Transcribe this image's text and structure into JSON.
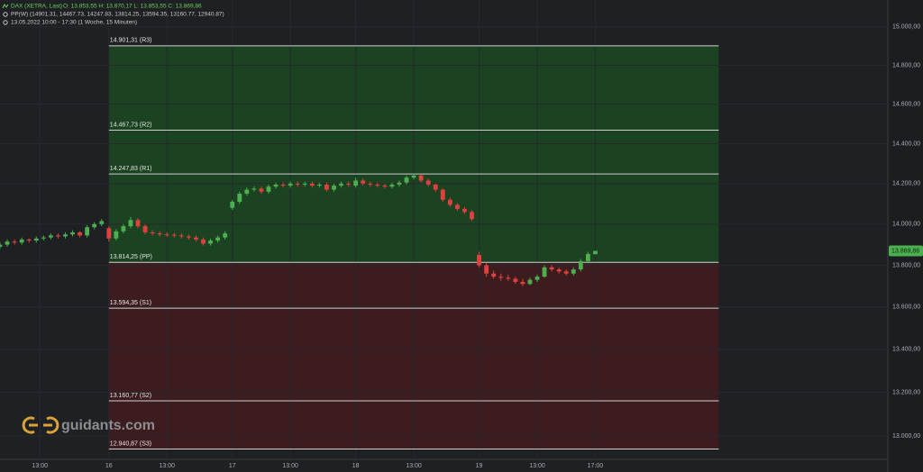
{
  "header": {
    "title": "DAX (XETRA, Last)",
    "ohlc": "O: 13.853,55   H: 13.870,17   L: 13.853,55   C: 13.869,86",
    "indicator": "PP(W)   (14901.31, 14467.73, 14247.83, 13814.25, 13594.35, 13160.77, 12940.87)",
    "period": "13.05.2022 10:00 - 17:30   (1 Woche, 15 Minuten)"
  },
  "watermark": "guidants.com",
  "chart_data": {
    "type": "candlestick",
    "log_scale": true,
    "grid": true,
    "up_color": "#4caf50",
    "down_color": "#e0413f",
    "xlim": [
      -30,
      214.6
    ],
    "ylim": [
      12894,
      15142
    ],
    "xticks": [
      {
        "value": -19,
        "label": "13:00"
      },
      {
        "value": 0,
        "label": "16"
      },
      {
        "value": 16,
        "label": "13:00"
      },
      {
        "value": 34,
        "label": "17"
      },
      {
        "value": 50,
        "label": "13:00"
      },
      {
        "value": 68,
        "label": "18"
      },
      {
        "value": 84,
        "label": "13:00"
      },
      {
        "value": 102,
        "label": "19"
      },
      {
        "value": 118,
        "label": "13:00"
      },
      {
        "value": 134,
        "label": "17:00"
      }
    ],
    "yticks": [
      {
        "value": 13000,
        "label": "13.000,00"
      },
      {
        "value": 13200,
        "label": "13.200,00"
      },
      {
        "value": 13400,
        "label": "13.400,00"
      },
      {
        "value": 13600,
        "label": "13.600,00"
      },
      {
        "value": 13800,
        "label": "13.800,00"
      },
      {
        "value": 14000,
        "label": "14.000,00"
      },
      {
        "value": 14200,
        "label": "14.200,00"
      },
      {
        "value": 14400,
        "label": "14.400,00"
      },
      {
        "value": 14600,
        "label": "14.600,00"
      },
      {
        "value": 14800,
        "label": "14.800,00"
      },
      {
        "value": 15000,
        "label": "15.000,00"
      }
    ],
    "last_price": {
      "value": 13869.86,
      "label": "13.869,86"
    },
    "pivot_span": [
      0,
      168
    ],
    "pivot_colors": {
      "above": "#1c4321",
      "below": "#3d1c20",
      "line": "#cfcfcf"
    },
    "pivots": [
      {
        "value": 14901.31,
        "label": "14.901,31 (R3)"
      },
      {
        "value": 14467.73,
        "label": "14.467,73 (R2)"
      },
      {
        "value": 14247.83,
        "label": "14.247,83 (R1)"
      },
      {
        "value": 13814.25,
        "label": "13.814,25 (PP)"
      },
      {
        "value": 13594.35,
        "label": "13.594,35 (S1)"
      },
      {
        "value": 13160.77,
        "label": "13.160,77 (S2)"
      },
      {
        "value": 12940.87,
        "label": "12.940,87 (S3)"
      }
    ],
    "x": [
      -30,
      -28,
      -26,
      -24,
      -22,
      -20,
      -18,
      -16,
      -14,
      -12,
      -10,
      -8,
      -6,
      -4,
      -2,
      0,
      2,
      4,
      6,
      8,
      10,
      12,
      14,
      16,
      18,
      20,
      22,
      24,
      26,
      28,
      30,
      32,
      34,
      36,
      38,
      40,
      42,
      44,
      46,
      48,
      50,
      52,
      54,
      56,
      58,
      60,
      62,
      64,
      66,
      68,
      70,
      72,
      74,
      76,
      78,
      80,
      82,
      84,
      86,
      88,
      90,
      92,
      94,
      96,
      98,
      100,
      102,
      104,
      106,
      108,
      110,
      112,
      114,
      116,
      118,
      120,
      122,
      124,
      126,
      128,
      130,
      132,
      134
    ],
    "open": [
      13890,
      13900,
      13915,
      13910,
      13925,
      13920,
      13930,
      13935,
      13945,
      13940,
      13950,
      13960,
      13945,
      13985,
      14000,
      13980,
      13930,
      13965,
      13990,
      14020,
      13990,
      13960,
      13955,
      13950,
      13948,
      13945,
      13940,
      13935,
      13925,
      13905,
      13920,
      13935,
      14080,
      14110,
      14150,
      14170,
      14175,
      14160,
      14185,
      14195,
      14190,
      14200,
      14195,
      14200,
      14190,
      14195,
      14170,
      14190,
      14200,
      14190,
      14215,
      14200,
      14195,
      14190,
      14185,
      14195,
      14205,
      14230,
      14240,
      14215,
      14195,
      14170,
      14120,
      14095,
      14075,
      14060,
      13850,
      13800,
      13760,
      13745,
      13740,
      13735,
      13720,
      13710,
      13730,
      13745,
      13790,
      13780,
      13770,
      13760,
      13780,
      13820,
      13853.55
    ],
    "high": [
      13910,
      13925,
      13925,
      13935,
      13930,
      13940,
      13945,
      13955,
      13955,
      13960,
      13970,
      13965,
      13995,
      14010,
      14025,
      13990,
      13975,
      14000,
      14035,
      14030,
      14000,
      13970,
      13965,
      13960,
      13958,
      13955,
      13950,
      13945,
      13935,
      13930,
      13945,
      13965,
      14120,
      14160,
      14180,
      14185,
      14185,
      14195,
      14205,
      14205,
      14210,
      14210,
      14210,
      14210,
      14205,
      14205,
      14200,
      14210,
      14210,
      14230,
      14225,
      14210,
      14205,
      14200,
      14205,
      14215,
      14240,
      14250,
      14245,
      14225,
      14200,
      14175,
      14130,
      14105,
      14085,
      14070,
      13865,
      13810,
      13775,
      13760,
      13755,
      13745,
      13735,
      13740,
      13755,
      13800,
      13800,
      13790,
      13780,
      13790,
      13830,
      13865,
      13870.17
    ],
    "low": [
      13880,
      13890,
      13900,
      13900,
      13910,
      13910,
      13920,
      13925,
      13930,
      13930,
      13940,
      13935,
      13935,
      13975,
      13990,
      13915,
      13920,
      13955,
      13980,
      13980,
      13950,
      13945,
      13940,
      13938,
      13935,
      13930,
      13925,
      13915,
      13895,
      13895,
      13910,
      13925,
      14070,
      14100,
      14140,
      14160,
      14150,
      14150,
      14175,
      14180,
      14180,
      14185,
      14185,
      14180,
      14180,
      14160,
      14160,
      14180,
      14185,
      14180,
      14190,
      14185,
      14180,
      14175,
      14175,
      14185,
      14195,
      14220,
      14205,
      14185,
      14160,
      14110,
      14085,
      14065,
      14050,
      14015,
      13790,
      13745,
      13735,
      13725,
      13725,
      13710,
      13700,
      13705,
      13720,
      13740,
      13770,
      13760,
      13750,
      13750,
      13770,
      13815,
      13853.55
    ],
    "close": [
      13900,
      13915,
      13910,
      13925,
      13920,
      13930,
      13935,
      13945,
      13940,
      13950,
      13960,
      13945,
      13985,
      14000,
      14015,
      13930,
      13965,
      13990,
      14020,
      13990,
      13960,
      13955,
      13950,
      13948,
      13945,
      13940,
      13935,
      13925,
      13905,
      13920,
      13935,
      13955,
      14110,
      14150,
      14170,
      14175,
      14160,
      14185,
      14195,
      14190,
      14200,
      14195,
      14200,
      14190,
      14195,
      14170,
      14190,
      14200,
      14195,
      14215,
      14200,
      14195,
      14190,
      14185,
      14195,
      14205,
      14230,
      14240,
      14215,
      14195,
      14170,
      14120,
      14095,
      14075,
      14060,
      14025,
      13800,
      13760,
      13745,
      13740,
      13735,
      13720,
      13710,
      13730,
      13745,
      13790,
      13780,
      13770,
      13760,
      13780,
      13820,
      13855,
      13869.86
    ]
  }
}
